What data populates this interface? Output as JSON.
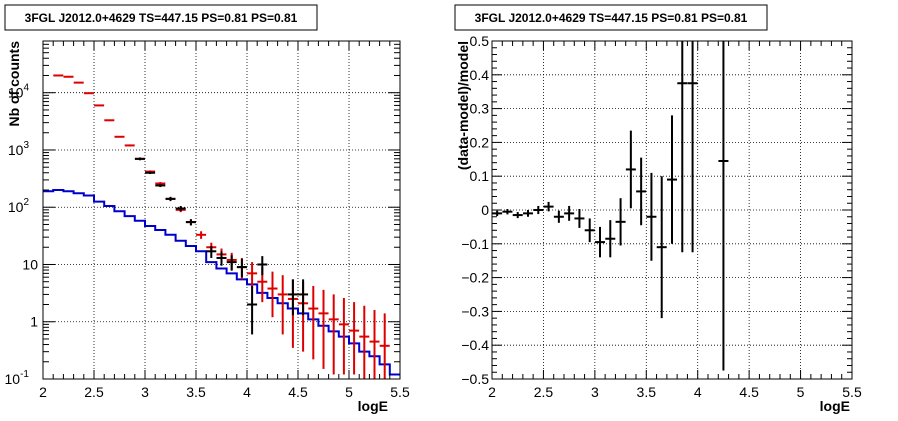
{
  "chart_data": [
    {
      "type": "line",
      "title": "3FGL J2012.0+4629 TS=447.15 PS=0.81 PS=0.81",
      "xlabel": "logE",
      "ylabel": "Nb of counts",
      "xlim": [
        2,
        5.5
      ],
      "ylim": [
        0.1,
        80000
      ],
      "yscale": "log",
      "grid": true,
      "xticks": [
        "2",
        "2.5",
        "3",
        "3.5",
        "4",
        "4.5",
        "5",
        "5.5"
      ],
      "yticks": [
        {
          "v": 0.1,
          "base": "10",
          "exp": "-1"
        },
        {
          "v": 1,
          "base": "1",
          "exp": ""
        },
        {
          "v": 10,
          "base": "10",
          "exp": ""
        },
        {
          "v": 100,
          "base": "10",
          "exp": "2"
        },
        {
          "v": 1000,
          "base": "10",
          "exp": "3"
        },
        {
          "v": 10000,
          "base": "10",
          "exp": "4"
        }
      ],
      "series": [
        {
          "role": "model-total",
          "color": "#dd0000",
          "x": [
            2.15,
            2.25,
            2.35,
            2.45,
            2.55,
            2.65,
            2.75,
            2.85,
            2.95,
            3.05,
            3.15,
            3.25,
            3.35,
            3.45,
            3.55,
            3.65,
            3.75,
            3.85,
            3.95,
            4.05,
            4.15,
            4.25,
            4.35,
            4.45,
            4.55,
            4.65,
            4.75,
            4.85,
            4.95,
            5.05,
            5.15,
            5.25,
            5.35
          ],
          "y": [
            20000,
            19000,
            15000,
            9800,
            6000,
            3300,
            1700,
            1200,
            700,
            420,
            260,
            140,
            90,
            55,
            33,
            20,
            15,
            12,
            9,
            7,
            5,
            3.8,
            3,
            2.5,
            2.1,
            1.7,
            1.4,
            1.1,
            0.9,
            0.7,
            0.55,
            0.45,
            0.38
          ],
          "ylow": [
            19500,
            18500,
            14600,
            9500,
            5800,
            3200,
            1650,
            1150,
            670,
            400,
            245,
            130,
            82,
            49,
            28,
            16,
            11,
            8,
            5.5,
            3.8,
            2.2,
            1.2,
            0.6,
            0.35,
            0.3,
            0.22,
            0.15,
            0.12,
            0.12,
            0.12,
            0.1,
            0.1,
            0.1
          ],
          "yhigh": [
            20500,
            19500,
            15400,
            10100,
            6200,
            3400,
            1750,
            1250,
            730,
            440,
            275,
            150,
            98,
            61,
            38,
            24,
            19,
            16,
            13,
            11,
            9,
            7.5,
            6.5,
            5.5,
            5,
            4.2,
            3.6,
            3,
            2.6,
            2.2,
            1.9,
            1.6,
            1.4
          ]
        },
        {
          "role": "model-source",
          "color": "#0000cc",
          "edges": [
            2.0,
            2.1,
            2.2,
            2.3,
            2.4,
            2.5,
            2.6,
            2.7,
            2.8,
            2.9,
            3.0,
            3.1,
            3.2,
            3.3,
            3.4,
            3.5,
            3.6,
            3.7,
            3.8,
            3.9,
            4.0,
            4.1,
            4.2,
            4.3,
            4.4,
            4.5,
            4.6,
            4.7,
            4.8,
            4.9,
            5.0,
            5.1,
            5.2,
            5.3,
            5.4,
            5.5
          ],
          "y": [
            190,
            200,
            190,
            175,
            160,
            125,
            105,
            85,
            70,
            58,
            47,
            40,
            33,
            26,
            21,
            17,
            11,
            8.5,
            7,
            5.5,
            4.5,
            3.2,
            2.6,
            2.1,
            1.7,
            1.4,
            1.1,
            0.85,
            0.68,
            0.55,
            0.42,
            0.3,
            0.25,
            0.18,
            0.12
          ]
        },
        {
          "role": "data",
          "color": "#000000",
          "x": [
            2.95,
            3.05,
            3.15,
            3.25,
            3.35,
            3.45,
            3.65,
            3.75,
            3.85,
            3.95,
            4.05,
            4.15,
            4.45,
            4.55
          ],
          "y": [
            700,
            400,
            240,
            140,
            95,
            55,
            17,
            13,
            11,
            9,
            2,
            10,
            3,
            3
          ],
          "ylow": [
            660,
            380,
            225,
            128,
            85,
            48,
            13,
            9.5,
            7.8,
            6,
            0.6,
            6.5,
            1.3,
            1.3
          ],
          "yhigh": [
            740,
            420,
            255,
            152,
            105,
            62,
            21,
            17,
            14.5,
            12.5,
            4.2,
            14,
            5.5,
            5.5
          ]
        }
      ]
    },
    {
      "type": "scatter",
      "title": "3FGL J2012.0+4629 TS=447.15 PS=0.81 PS=0.81",
      "xlabel": "logE",
      "ylabel": "(data-model)/model",
      "xlim": [
        2,
        5.5
      ],
      "ylim": [
        -0.5,
        0.5
      ],
      "grid": true,
      "xticks": [
        "2",
        "2.5",
        "3",
        "3.5",
        "4",
        "4.5",
        "5",
        "5.5"
      ],
      "yticks": [
        "−0.5",
        "−0.4",
        "−0.3",
        "−0.2",
        "−0.1",
        "0",
        "0.1",
        "0.2",
        "0.3",
        "0.4",
        "0.5"
      ],
      "series": [
        {
          "role": "residuals",
          "color": "#000000",
          "x": [
            2.05,
            2.15,
            2.25,
            2.35,
            2.45,
            2.55,
            2.65,
            2.75,
            2.85,
            2.95,
            3.05,
            3.15,
            3.25,
            3.35,
            3.45,
            3.55,
            3.65,
            3.75,
            3.85,
            3.95,
            4.25
          ],
          "y": [
            -0.01,
            -0.005,
            -0.015,
            -0.01,
            0.0,
            0.01,
            -0.02,
            -0.01,
            -0.025,
            -0.06,
            -0.095,
            -0.085,
            -0.035,
            0.12,
            0.055,
            -0.02,
            -0.11,
            0.09,
            0.375,
            0.375,
            0.145
          ],
          "yerr": [
            0.008,
            0.008,
            0.009,
            0.01,
            0.012,
            0.014,
            0.018,
            0.022,
            0.028,
            0.035,
            0.045,
            0.055,
            0.07,
            0.115,
            0.1,
            0.13,
            0.21,
            0.19,
            0.5,
            0.5,
            0.62
          ]
        }
      ]
    }
  ]
}
